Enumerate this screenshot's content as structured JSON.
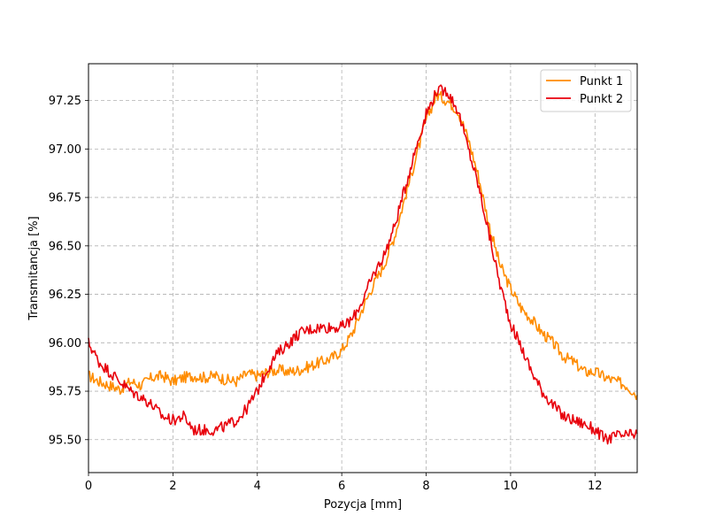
{
  "chart_data": {
    "type": "line",
    "title": "",
    "xlabel": "Pozycja [mm]",
    "ylabel": "Transmitancja [%]",
    "xlim": [
      0,
      13
    ],
    "ylim": [
      95.33,
      97.44
    ],
    "x_ticks": [
      0,
      2,
      4,
      6,
      8,
      10,
      12
    ],
    "x_tick_labels": [
      "0",
      "2",
      "4",
      "6",
      "8",
      "10",
      "12"
    ],
    "y_ticks": [
      95.5,
      95.75,
      96.0,
      96.25,
      96.5,
      96.75,
      97.0,
      97.25
    ],
    "y_tick_labels": [
      "95.50",
      "95.75",
      "96.00",
      "96.25",
      "96.50",
      "96.75",
      "97.00",
      "97.25"
    ],
    "grid": true,
    "legend_position": "top-right",
    "series": [
      {
        "name": "Punkt 1",
        "color": "#ff8c00",
        "points": [
          [
            0,
            95.83
          ],
          [
            0.25,
            95.8
          ],
          [
            0.5,
            95.78
          ],
          [
            0.75,
            95.76
          ],
          [
            1.0,
            95.8
          ],
          [
            1.25,
            95.78
          ],
          [
            1.5,
            95.82
          ],
          [
            1.75,
            95.83
          ],
          [
            2.0,
            95.8
          ],
          [
            2.25,
            95.82
          ],
          [
            2.5,
            95.83
          ],
          [
            2.75,
            95.82
          ],
          [
            3.0,
            95.83
          ],
          [
            3.25,
            95.81
          ],
          [
            3.5,
            95.8
          ],
          [
            3.75,
            95.84
          ],
          [
            4.0,
            95.83
          ],
          [
            4.25,
            95.85
          ],
          [
            4.5,
            95.86
          ],
          [
            4.75,
            95.85
          ],
          [
            5.0,
            95.86
          ],
          [
            5.25,
            95.88
          ],
          [
            5.5,
            95.9
          ],
          [
            5.75,
            95.92
          ],
          [
            6.0,
            95.96
          ],
          [
            6.25,
            96.05
          ],
          [
            6.5,
            96.18
          ],
          [
            6.75,
            96.3
          ],
          [
            7.0,
            96.4
          ],
          [
            7.25,
            96.55
          ],
          [
            7.5,
            96.75
          ],
          [
            7.75,
            96.95
          ],
          [
            8.0,
            97.15
          ],
          [
            8.25,
            97.28
          ],
          [
            8.5,
            97.25
          ],
          [
            8.75,
            97.2
          ],
          [
            9.0,
            97.05
          ],
          [
            9.25,
            96.85
          ],
          [
            9.5,
            96.6
          ],
          [
            9.75,
            96.4
          ],
          [
            10.0,
            96.28
          ],
          [
            10.25,
            96.18
          ],
          [
            10.5,
            96.12
          ],
          [
            10.75,
            96.05
          ],
          [
            11.0,
            96.0
          ],
          [
            11.25,
            95.93
          ],
          [
            11.5,
            95.9
          ],
          [
            11.75,
            95.85
          ],
          [
            12.0,
            95.85
          ],
          [
            12.25,
            95.82
          ],
          [
            12.5,
            95.8
          ],
          [
            12.75,
            95.78
          ],
          [
            13.0,
            95.73
          ]
        ]
      },
      {
        "name": "Punkt 2",
        "color": "#e8000b",
        "points": [
          [
            0,
            96.0
          ],
          [
            0.25,
            95.9
          ],
          [
            0.5,
            95.85
          ],
          [
            0.75,
            95.8
          ],
          [
            1.0,
            95.75
          ],
          [
            1.25,
            95.72
          ],
          [
            1.5,
            95.68
          ],
          [
            1.75,
            95.62
          ],
          [
            2.0,
            95.6
          ],
          [
            2.25,
            95.62
          ],
          [
            2.5,
            95.55
          ],
          [
            2.75,
            95.55
          ],
          [
            3.0,
            95.55
          ],
          [
            3.25,
            95.57
          ],
          [
            3.5,
            95.6
          ],
          [
            3.75,
            95.66
          ],
          [
            4.0,
            95.75
          ],
          [
            4.25,
            95.87
          ],
          [
            4.5,
            95.95
          ],
          [
            4.75,
            96.0
          ],
          [
            5.0,
            96.05
          ],
          [
            5.25,
            96.07
          ],
          [
            5.5,
            96.08
          ],
          [
            5.75,
            96.08
          ],
          [
            6.0,
            96.08
          ],
          [
            6.25,
            96.12
          ],
          [
            6.5,
            96.22
          ],
          [
            6.75,
            96.35
          ],
          [
            7.0,
            96.45
          ],
          [
            7.25,
            96.6
          ],
          [
            7.5,
            96.8
          ],
          [
            7.75,
            97.0
          ],
          [
            8.0,
            97.18
          ],
          [
            8.25,
            97.3
          ],
          [
            8.5,
            97.3
          ],
          [
            8.75,
            97.2
          ],
          [
            9.0,
            97.0
          ],
          [
            9.25,
            96.8
          ],
          [
            9.5,
            96.55
          ],
          [
            9.75,
            96.3
          ],
          [
            10.0,
            96.1
          ],
          [
            10.25,
            95.98
          ],
          [
            10.5,
            95.85
          ],
          [
            10.75,
            95.75
          ],
          [
            11.0,
            95.68
          ],
          [
            11.25,
            95.62
          ],
          [
            11.5,
            95.6
          ],
          [
            11.75,
            95.58
          ],
          [
            12.0,
            95.55
          ],
          [
            12.25,
            95.5
          ],
          [
            12.5,
            95.52
          ],
          [
            12.75,
            95.52
          ],
          [
            13.0,
            95.53
          ]
        ]
      }
    ]
  }
}
